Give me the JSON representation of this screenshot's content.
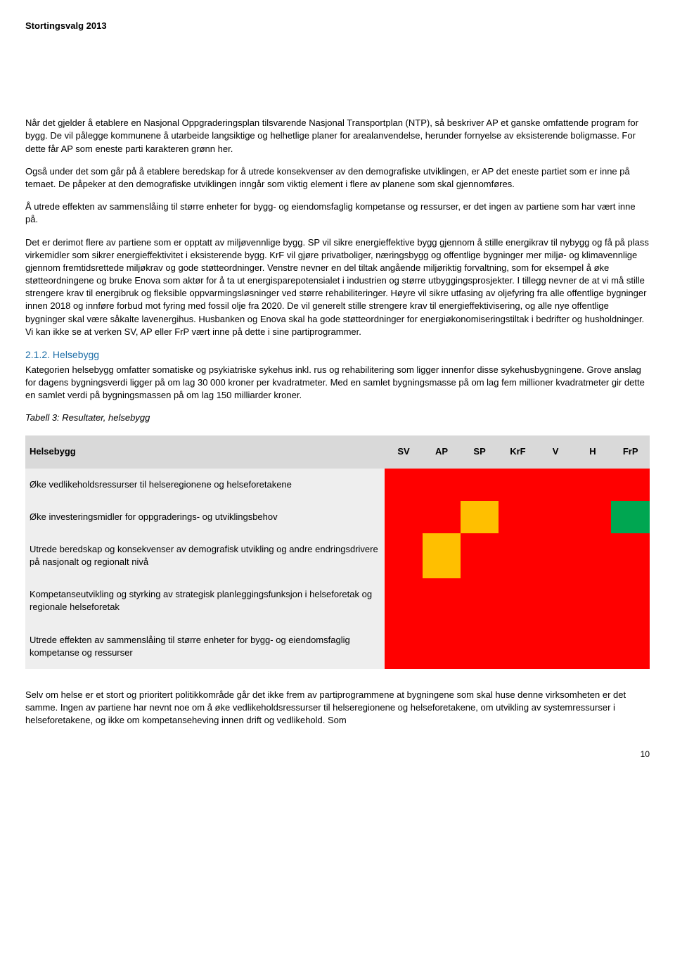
{
  "header": "Stortingsvalg 2013",
  "paragraphs": {
    "p1": "Når det gjelder å etablere en Nasjonal Oppgraderingsplan tilsvarende Nasjonal Transportplan (NTP), så beskriver AP et ganske omfattende program for bygg. De vil pålegge kommunene å utarbeide langsiktige og helhetlige planer for arealanvendelse, herunder fornyelse av eksisterende boligmasse. For dette får AP som eneste parti karakteren grønn her.",
    "p2": "Også under det som går på å etablere beredskap for å utrede konsekvenser av den demografiske utviklingen, er AP det eneste partiet som er inne på temaet. De påpeker at den demografiske utviklingen inngår som viktig element i flere av planene som skal gjennomføres.",
    "p3": "Å utrede effekten av sammenslåing til større enheter for bygg- og eiendomsfaglig kompetanse og ressurser, er det ingen av partiene som har vært inne på.",
    "p4": "Det er derimot flere av partiene som er opptatt av miljøvennlige bygg. SP vil sikre energieffektive bygg gjennom å stille energikrav til nybygg og få på plass virkemidler som sikrer energieffektivitet i eksisterende bygg. KrF vil gjøre privatboliger, næringsbygg og offentlige bygninger mer miljø- og klimavennlige gjennom fremtidsrettede miljøkrav og gode støtteordninger. Venstre nevner en del tiltak angående miljøriktig forvaltning, som for eksempel å øke støtteordningene og bruke Enova som aktør for å ta ut energisparepotensialet i industrien og større utbyggingsprosjekter. I tillegg nevner de at vi må stille strengere krav til energibruk og fleksible oppvarmingsløsninger ved større rehabiliteringer. Høyre vil sikre utfasing av oljefyring fra alle offentlige bygninger innen 2018 og innføre forbud mot fyring med fossil olje fra 2020. De vil generelt stille strengere krav til energieffektivisering, og alle nye offentlige bygninger skal være såkalte lavenergihus. Husbanken og Enova skal ha gode støtteordninger for energiøkonomiseringstiltak i bedrifter og husholdninger. Vi kan ikke se at verken SV, AP eller FrP vært inne på dette i sine partiprogrammer.",
    "section_heading": "2.1.2. Helsebygg",
    "p5": "Kategorien helsebygg omfatter somatiske og psykiatriske sykehus inkl. rus og rehabilitering som ligger innenfor disse sykehusbygningene. Grove anslag for dagens bygningsverdi ligger på om lag 30 000 kroner per kvadratmeter. Med en samlet bygningsmasse på om lag fem millioner kvadratmeter gir dette en samlet verdi på bygningsmassen på om lag 150 milliarder kroner.",
    "table_caption": "Tabell 3: Resultater, helsebygg",
    "p6": "Selv om helse er et stort og prioritert politikkområde går det ikke frem av partiprogrammene at bygningene som skal huse denne virksomheten er det samme. Ingen av partiene har nevnt noe om å øke vedlikeholdsressurser til helseregionene og helseforetakene, om utvikling av systemressurser i helseforetakene, og ikke om kompetanseheving innen drift og vedlikehold. Som"
  },
  "table": {
    "header_label": "Helsebygg",
    "parties": [
      "SV",
      "AP",
      "SP",
      "KrF",
      "V",
      "H",
      "FrP"
    ],
    "colors": {
      "red": "#ff0000",
      "yellow": "#ffbf00",
      "green": "#00a651",
      "header_bg": "#d9d9d9",
      "row_bg": "#eeeeee"
    },
    "rows": [
      {
        "label": "Øke vedlikeholdsressurser til helseregionene og helseforetakene",
        "cells": [
          "red",
          "red",
          "red",
          "red",
          "red",
          "red",
          "red"
        ]
      },
      {
        "label": "Øke investeringsmidler for oppgraderings- og utviklingsbehov",
        "cells": [
          "red",
          "red",
          "yellow",
          "red",
          "red",
          "red",
          "green"
        ]
      },
      {
        "label": "Utrede beredskap og konsekvenser av demografisk utvikling og andre endringsdrivere på nasjonalt og regionalt nivå",
        "cells": [
          "red",
          "yellow",
          "red",
          "red",
          "red",
          "red",
          "red"
        ]
      },
      {
        "label": "Kompetanseutvikling og styrking av strategisk planleggingsfunksjon i helseforetak og regionale helseforetak",
        "cells": [
          "red",
          "red",
          "red",
          "red",
          "red",
          "red",
          "red"
        ]
      },
      {
        "label": "Utrede effekten av sammenslåing til større enheter for bygg- og eiendomsfaglig kompetanse og ressurser",
        "cells": [
          "red",
          "red",
          "red",
          "red",
          "red",
          "red",
          "red"
        ]
      }
    ]
  },
  "page_number": "10"
}
